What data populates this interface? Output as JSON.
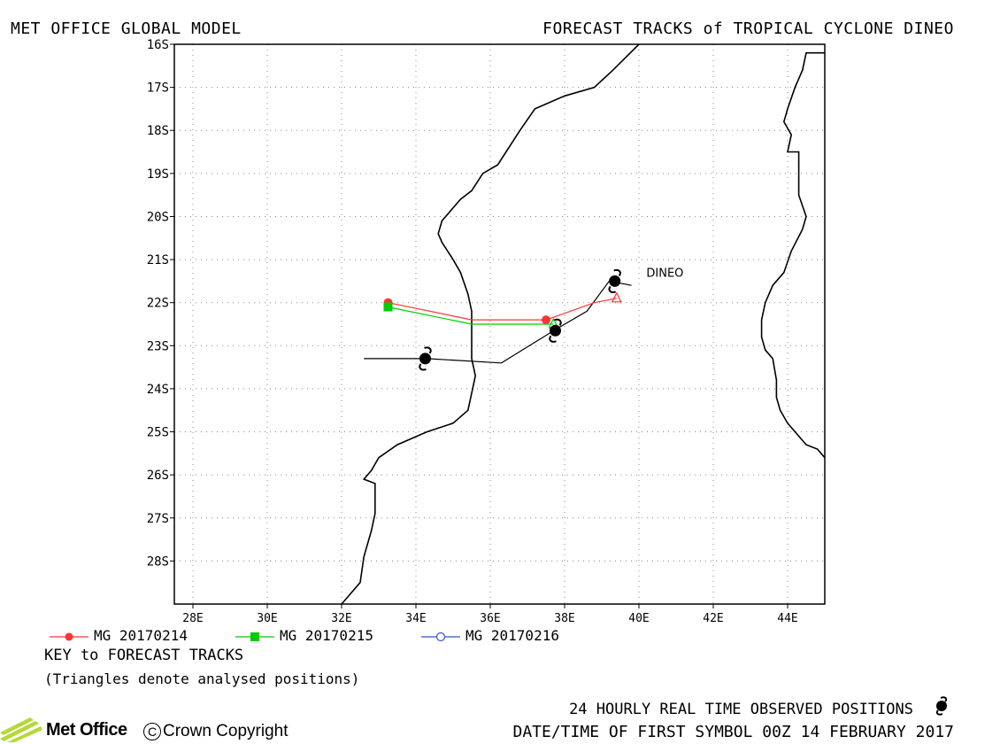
{
  "header": {
    "left_title": "MET OFFICE GLOBAL MODEL",
    "right_title": "FORECAST TRACKS of TROPICAL CYCLONE DINEO"
  },
  "map": {
    "lon_range": [
      27.5,
      45
    ],
    "lat_range": [
      -16,
      -29
    ],
    "lon_ticks": [
      28,
      30,
      32,
      34,
      36,
      38,
      40,
      42,
      44
    ],
    "lon_labels": [
      "28E",
      "30E",
      "32E",
      "34E",
      "36E",
      "38E",
      "40E",
      "42E",
      "44E"
    ],
    "lat_ticks": [
      -16,
      -17,
      -18,
      -19,
      -20,
      -21,
      -22,
      -23,
      -24,
      -25,
      -26,
      -27,
      -28
    ],
    "lat_labels": [
      "16S",
      "17S",
      "18S",
      "19S",
      "20S",
      "21S",
      "22S",
      "23S",
      "24S",
      "25S",
      "26S",
      "27S",
      "28S"
    ],
    "grid": "dotted",
    "storm_label": "DINEO",
    "storm_label_pos": {
      "lon": 40.2,
      "lat": -21.3
    },
    "coastline_africa": [
      [
        40.0,
        -16.0
      ],
      [
        39.3,
        -16.6
      ],
      [
        38.8,
        -17.0
      ],
      [
        38.0,
        -17.2
      ],
      [
        37.2,
        -17.5
      ],
      [
        36.8,
        -18.0
      ],
      [
        36.2,
        -18.8
      ],
      [
        35.8,
        -19.0
      ],
      [
        35.5,
        -19.4
      ],
      [
        35.2,
        -19.6
      ],
      [
        34.9,
        -19.9
      ],
      [
        34.7,
        -20.1
      ],
      [
        34.6,
        -20.4
      ],
      [
        34.7,
        -20.6
      ],
      [
        35.0,
        -21.0
      ],
      [
        35.2,
        -21.3
      ],
      [
        35.4,
        -21.8
      ],
      [
        35.5,
        -22.2
      ],
      [
        35.5,
        -22.8
      ],
      [
        35.5,
        -23.3
      ],
      [
        35.6,
        -23.7
      ],
      [
        35.5,
        -24.1
      ],
      [
        35.4,
        -24.5
      ],
      [
        35.0,
        -24.8
      ],
      [
        34.3,
        -25.0
      ],
      [
        33.5,
        -25.3
      ],
      [
        33.0,
        -25.6
      ],
      [
        32.8,
        -25.9
      ],
      [
        32.6,
        -26.1
      ],
      [
        32.9,
        -26.2
      ],
      [
        32.9,
        -26.9
      ],
      [
        32.8,
        -27.3
      ],
      [
        32.6,
        -27.9
      ],
      [
        32.5,
        -28.5
      ],
      [
        32.0,
        -29.0
      ]
    ],
    "coastline_madagascar": [
      [
        45.0,
        -16.2
      ],
      [
        44.5,
        -16.2
      ],
      [
        44.4,
        -16.6
      ],
      [
        44.2,
        -17.0
      ],
      [
        44.0,
        -17.5
      ],
      [
        43.9,
        -17.8
      ],
      [
        44.1,
        -18.1
      ],
      [
        44.0,
        -18.5
      ],
      [
        44.3,
        -18.5
      ],
      [
        44.3,
        -19.0
      ],
      [
        44.3,
        -19.5
      ],
      [
        44.5,
        -20.0
      ],
      [
        44.4,
        -20.3
      ],
      [
        44.1,
        -20.8
      ],
      [
        43.9,
        -21.3
      ],
      [
        43.6,
        -21.6
      ],
      [
        43.4,
        -22.0
      ],
      [
        43.3,
        -22.4
      ],
      [
        43.3,
        -22.8
      ],
      [
        43.4,
        -23.1
      ],
      [
        43.6,
        -23.3
      ],
      [
        43.7,
        -23.8
      ],
      [
        43.7,
        -24.2
      ],
      [
        43.8,
        -24.5
      ],
      [
        44.0,
        -24.8
      ],
      [
        44.3,
        -25.1
      ],
      [
        44.5,
        -25.3
      ],
      [
        44.8,
        -25.4
      ],
      [
        45.0,
        -25.6
      ]
    ],
    "observed_track": [
      [
        39.8,
        -21.6
      ],
      [
        39.2,
        -21.5
      ],
      [
        38.6,
        -22.2
      ],
      [
        37.8,
        -22.6
      ],
      [
        36.3,
        -23.4
      ],
      [
        34.3,
        -23.3
      ],
      [
        32.6,
        -23.3
      ]
    ],
    "observed_symbols": [
      [
        39.35,
        -21.5
      ],
      [
        37.75,
        -22.65
      ],
      [
        34.25,
        -23.3
      ]
    ],
    "series": [
      {
        "name": "MG 20170214",
        "color": "#ff3333",
        "marker": "circle",
        "track": [
          [
            33.25,
            -22.0
          ],
          [
            35.5,
            -22.4
          ],
          [
            37.5,
            -22.4
          ],
          [
            38.8,
            -22.0
          ],
          [
            39.4,
            -21.9
          ]
        ],
        "markers": [
          [
            33.25,
            -22.0
          ],
          [
            37.5,
            -22.4
          ]
        ],
        "analysed": [
          39.4,
          -21.9
        ]
      },
      {
        "name": "MG 20170215",
        "color": "#00cc00",
        "marker": "square",
        "track": [
          [
            33.25,
            -22.1
          ],
          [
            35.5,
            -22.5
          ],
          [
            37.7,
            -22.5
          ]
        ],
        "markers": [
          [
            33.25,
            -22.1
          ]
        ],
        "analysed": [
          37.7,
          -22.5
        ]
      },
      {
        "name": "MG 20170216",
        "color": "#3355cc",
        "marker": "open-circle",
        "track": [],
        "markers": [],
        "analysed": null
      }
    ]
  },
  "legend": {
    "key_title": "KEY to FORECAST TRACKS",
    "key_note": "(Triangles denote analysed positions)"
  },
  "footer": {
    "observed_label": "24 HOURLY REAL TIME OBSERVED POSITIONS",
    "date_label": "DATE/TIME OF FIRST SYMBOL 00Z 14 FEBRUARY 2017",
    "logo_text": "Met Office",
    "copyright_symbol": "C",
    "copyright_text": "Crown Copyright"
  }
}
